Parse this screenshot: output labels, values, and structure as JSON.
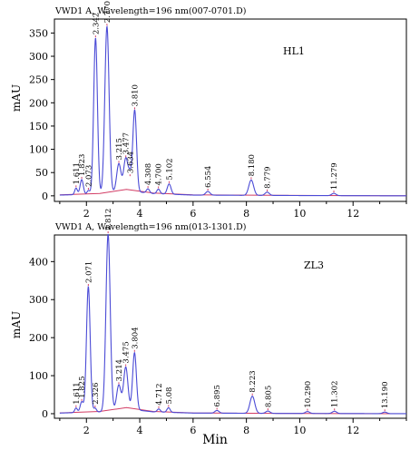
{
  "chart_data": [
    {
      "type": "line",
      "header": "VWD1 A, Wavelength=196 nm(007-0701.D)",
      "sample_label": "HL1",
      "ylabel": "mAU",
      "xlim": [
        0.8,
        14.0
      ],
      "ylim": [
        -12,
        380
      ],
      "yticks": [
        0,
        50,
        100,
        150,
        200,
        250,
        300,
        350
      ],
      "xticks": [
        2,
        4,
        6,
        8,
        10,
        12
      ],
      "peaks": [
        {
          "rt": 1.611,
          "label": "1.611",
          "height": 14,
          "width": 0.05
        },
        {
          "rt": 1.823,
          "label": "1.823",
          "height": 32,
          "width": 0.06
        },
        {
          "rt": 2.073,
          "label": "2.073",
          "height": 8,
          "width": 0.05
        },
        {
          "rt": 2.342,
          "label": "2.342",
          "height": 335,
          "width": 0.07
        },
        {
          "rt": 2.77,
          "label": "2.770",
          "height": 358,
          "width": 0.08
        },
        {
          "rt": 3.215,
          "label": "3.215",
          "height": 60,
          "width": 0.08
        },
        {
          "rt": 3.477,
          "label": "3.477",
          "height": 70,
          "width": 0.08
        },
        {
          "rt": 3.634,
          "label": "3.634",
          "height": 30,
          "width": 0.06
        },
        {
          "rt": 3.81,
          "label": "3.810",
          "height": 175,
          "width": 0.07
        },
        {
          "rt": 4.308,
          "label": "4.308",
          "height": 9,
          "width": 0.06
        },
        {
          "rt": 4.7,
          "label": "4.700",
          "height": 10,
          "width": 0.06
        },
        {
          "rt": 5.102,
          "label": "5.102",
          "height": 22,
          "width": 0.07
        },
        {
          "rt": 6.554,
          "label": "6.554",
          "height": 8,
          "width": 0.08
        },
        {
          "rt": 8.18,
          "label": "8.180",
          "height": 33,
          "width": 0.09
        },
        {
          "rt": 8.779,
          "label": "8.779",
          "height": 7,
          "width": 0.08
        },
        {
          "rt": 11.279,
          "label": "11.279",
          "height": 5,
          "width": 0.08
        }
      ],
      "baseline": [
        [
          1.0,
          2
        ],
        [
          2.5,
          5
        ],
        [
          3.5,
          14
        ],
        [
          4.5,
          6
        ],
        [
          6.0,
          2
        ],
        [
          9.0,
          1
        ],
        [
          14.0,
          0
        ]
      ]
    },
    {
      "type": "line",
      "header": "VWD1 A, Wavelength=196 nm(013-1301.D)",
      "sample_label": "ZL3",
      "ylabel": "mAU",
      "xlabel": "Min",
      "xlim": [
        0.8,
        14.0
      ],
      "ylim": [
        -12,
        470
      ],
      "yticks": [
        0,
        100,
        200,
        300,
        400
      ],
      "xticks": [
        2,
        4,
        6,
        8,
        10,
        12
      ],
      "peaks": [
        {
          "rt": 1.611,
          "label": "1.611",
          "height": 12,
          "width": 0.05
        },
        {
          "rt": 1.825,
          "label": "1.825",
          "height": 28,
          "width": 0.06
        },
        {
          "rt": 2.071,
          "label": "2.071",
          "height": 330,
          "width": 0.07
        },
        {
          "rt": 2.326,
          "label": "2.326",
          "height": 10,
          "width": 0.05
        },
        {
          "rt": 2.812,
          "label": "2.812",
          "height": 465,
          "width": 0.08
        },
        {
          "rt": 3.214,
          "label": "3.214",
          "height": 65,
          "width": 0.08
        },
        {
          "rt": 3.475,
          "label": "3.475",
          "height": 110,
          "width": 0.08
        },
        {
          "rt": 3.804,
          "label": "3.804",
          "height": 150,
          "width": 0.07
        },
        {
          "rt": 4.712,
          "label": "4.712",
          "height": 8,
          "width": 0.06
        },
        {
          "rt": 5.08,
          "label": "5.08",
          "height": 12,
          "width": 0.06
        },
        {
          "rt": 6.895,
          "label": "6.895",
          "height": 7,
          "width": 0.08
        },
        {
          "rt": 8.223,
          "label": "8.223",
          "height": 45,
          "width": 0.09
        },
        {
          "rt": 8.805,
          "label": "8.805",
          "height": 6,
          "width": 0.08
        },
        {
          "rt": 10.29,
          "label": "10.290",
          "height": 5,
          "width": 0.08
        },
        {
          "rt": 11.302,
          "label": "11.302",
          "height": 6,
          "width": 0.08
        },
        {
          "rt": 13.19,
          "label": "13.190",
          "height": 4,
          "width": 0.08
        }
      ],
      "baseline": [
        [
          1.0,
          2
        ],
        [
          2.5,
          6
        ],
        [
          3.5,
          16
        ],
        [
          4.5,
          6
        ],
        [
          6.0,
          2
        ],
        [
          9.0,
          1
        ],
        [
          14.0,
          0
        ]
      ]
    }
  ],
  "colors": {
    "trace": "#4b4bd6",
    "baseline": "#d23c64",
    "axis": "#000000"
  }
}
